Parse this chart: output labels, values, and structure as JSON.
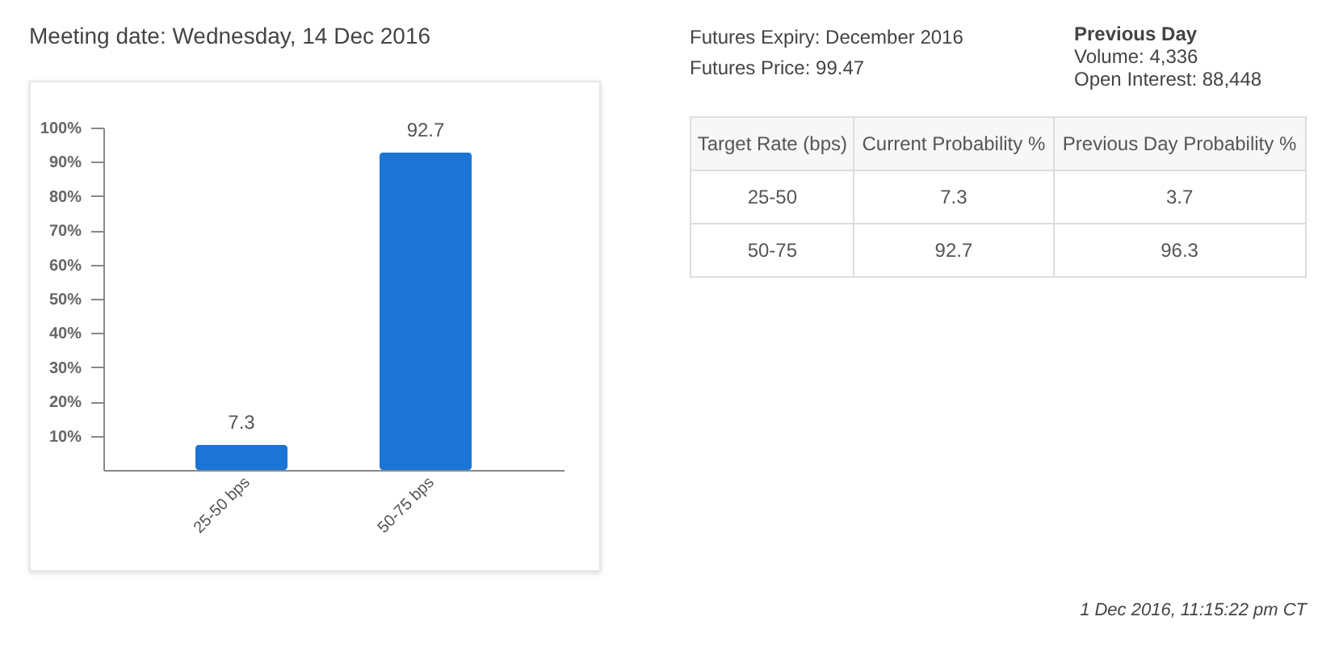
{
  "chart_data": [
    {
      "type": "bar",
      "title": "Meeting date: Wednesday, 14 Dec 2016",
      "categories": [
        "25-50 bps",
        "50-75 bps"
      ],
      "values": [
        7.3,
        92.7
      ],
      "color": "#1c75d4",
      "data_labels": true,
      "grid": false,
      "ylim": [
        0,
        100
      ],
      "yticks": [
        {
          "value": 10,
          "label": "10%"
        },
        {
          "value": 20,
          "label": "20%"
        },
        {
          "value": 30,
          "label": "30%"
        },
        {
          "value": 40,
          "label": "40%"
        },
        {
          "value": 50,
          "label": "50%"
        },
        {
          "value": 60,
          "label": "60%"
        },
        {
          "value": 70,
          "label": "70%"
        },
        {
          "value": 80,
          "label": "80%"
        },
        {
          "value": 90,
          "label": "90%"
        },
        {
          "value": 100,
          "label": "100%"
        }
      ]
    },
    {
      "type": "other",
      "xlabel": "Target Rate (bps)",
      "categories": [
        "25-50",
        "50-75"
      ],
      "data_labels": true,
      "series": [
        {
          "name": "Current Probability %",
          "values": [
            7.3,
            92.7
          ]
        },
        {
          "name": "Previous Day Probability %",
          "values": [
            3.7,
            96.3
          ]
        }
      ],
      "annotations": [
        "Futures Expiry: December 2016",
        "Futures Price: 99.47",
        "Previous Day",
        "Volume: 4,336",
        "Open Interest: 88,448",
        "1 Dec 2016, 11:15:22 pm CT"
      ]
    }
  ]
}
